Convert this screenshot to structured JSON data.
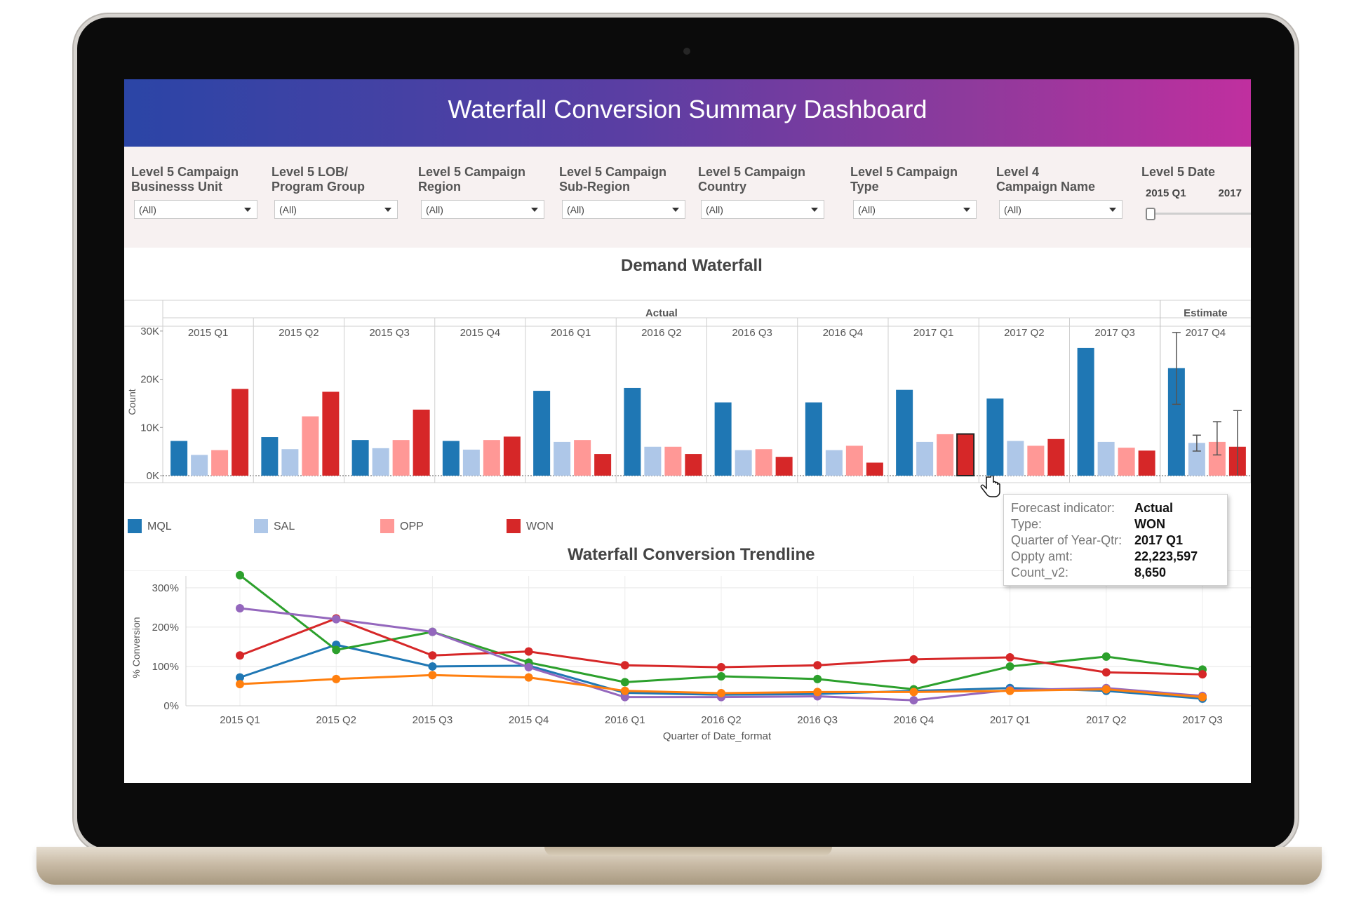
{
  "title": "Waterfall Conversion Summary Dashboard",
  "filters": [
    {
      "label": "Level 5 Campaign\nBusinesss Unit",
      "value": "(All)"
    },
    {
      "label": "Level 5 LOB/\nProgram Group",
      "value": "(All)"
    },
    {
      "label": "Level 5 Campaign\nRegion",
      "value": "(All)"
    },
    {
      "label": "Level 5 Campaign\nSub-Region",
      "value": "(All)"
    },
    {
      "label": "Level 5 Campaign\nCountry",
      "value": "(All)"
    },
    {
      "label": "Level 5 Campaign\nType",
      "value": "(All)"
    },
    {
      "label": "Level 4\nCampaign Name",
      "value": "(All)"
    }
  ],
  "date_filter": {
    "label": "Level 5 Date",
    "from": "2015 Q1",
    "to": "2017"
  },
  "waterfall": {
    "title": "Demand Waterfall",
    "header_actual": "Actual",
    "header_estimate": "Estimate",
    "y_label": "Count",
    "y_ticks": [
      "0K",
      "10K",
      "20K",
      "30K"
    ],
    "y_max": 31000,
    "legend": [
      {
        "name": "MQL",
        "color": "#1f77b4"
      },
      {
        "name": "SAL",
        "color": "#aec7e8"
      },
      {
        "name": "OPP",
        "color": "#ff9896"
      },
      {
        "name": "WON",
        "color": "#d62728"
      }
    ]
  },
  "tooltip": {
    "rows": [
      {
        "key": "Forecast indicator:",
        "value": "Actual"
      },
      {
        "key": "Type:",
        "value": "WON"
      },
      {
        "key": "Quarter of Year-Qtr:",
        "value": "2017 Q1"
      },
      {
        "key": "Oppty amt:",
        "value": "22,223,597"
      },
      {
        "key": "Count_v2:",
        "value": "8,650"
      }
    ]
  },
  "trend": {
    "title": "Waterfall Conversion Trendline",
    "x_label": "Quarter of Date_format",
    "y_label": "% Conversion",
    "y_ticks": [
      "0%",
      "100%",
      "200%",
      "300%"
    ]
  },
  "chart_data": [
    {
      "type": "bar",
      "title": "Demand Waterfall",
      "ylabel": "Count",
      "ylim": [
        0,
        31000
      ],
      "categories": [
        "2015 Q1",
        "2015 Q2",
        "2015 Q3",
        "2015 Q4",
        "2016 Q1",
        "2016 Q2",
        "2016 Q3",
        "2016 Q4",
        "2017 Q1",
        "2017 Q2",
        "2017 Q3",
        "2017 Q4"
      ],
      "category_groups": [
        "Actual",
        "Actual",
        "Actual",
        "Actual",
        "Actual",
        "Actual",
        "Actual",
        "Actual",
        "Actual",
        "Actual",
        "Actual",
        "Estimate"
      ],
      "series": [
        {
          "name": "MQL",
          "values": [
            7200,
            8000,
            7400,
            7200,
            17600,
            18200,
            15200,
            15200,
            17800,
            16000,
            26500,
            22300
          ]
        },
        {
          "name": "SAL",
          "values": [
            4300,
            5500,
            5700,
            5400,
            7000,
            6000,
            5300,
            5300,
            7000,
            7200,
            7000,
            6800
          ]
        },
        {
          "name": "OPP",
          "values": [
            5300,
            12300,
            7400,
            7400,
            7400,
            6000,
            5500,
            6200,
            8600,
            6200,
            5800,
            7000
          ]
        },
        {
          "name": "WON",
          "values": [
            18000,
            17400,
            13700,
            8100,
            4500,
            4500,
            3900,
            2700,
            8650,
            7600,
            5200,
            6000
          ]
        }
      ],
      "error_bars": {
        "category": "2017 Q4",
        "MQL": [
          14800,
          29700
        ],
        "SAL": [
          5100,
          8400
        ],
        "OPP": [
          4300,
          11200
        ],
        "WON": [
          null,
          13500
        ]
      }
    },
    {
      "type": "line",
      "title": "Waterfall Conversion Trendline",
      "xlabel": "Quarter of Date_format",
      "ylabel": "% Conversion",
      "ylim": [
        0,
        330
      ],
      "categories": [
        "2015 Q1",
        "2015 Q2",
        "2015 Q3",
        "2015 Q4",
        "2016 Q1",
        "2016 Q2",
        "2016 Q3",
        "2016 Q4",
        "2017 Q1",
        "2017 Q2",
        "2017 Q3"
      ],
      "series": [
        {
          "name": "blue",
          "color": "#1f77b4",
          "values": [
            72,
            155,
            100,
            102,
            33,
            28,
            30,
            38,
            45,
            38,
            18
          ]
        },
        {
          "name": "green",
          "color": "#2ca02c",
          "values": [
            332,
            142,
            188,
            110,
            60,
            75,
            68,
            42,
            100,
            125,
            92
          ]
        },
        {
          "name": "red",
          "color": "#d62728",
          "values": [
            128,
            222,
            128,
            138,
            103,
            98,
            103,
            118,
            123,
            85,
            80
          ]
        },
        {
          "name": "purple",
          "color": "#9467bd",
          "values": [
            248,
            220,
            188,
            98,
            22,
            22,
            24,
            14,
            40,
            45,
            25
          ]
        },
        {
          "name": "orange",
          "color": "#ff7f0e",
          "values": [
            55,
            68,
            78,
            72,
            38,
            32,
            35,
            35,
            38,
            42,
            22
          ]
        }
      ]
    }
  ]
}
